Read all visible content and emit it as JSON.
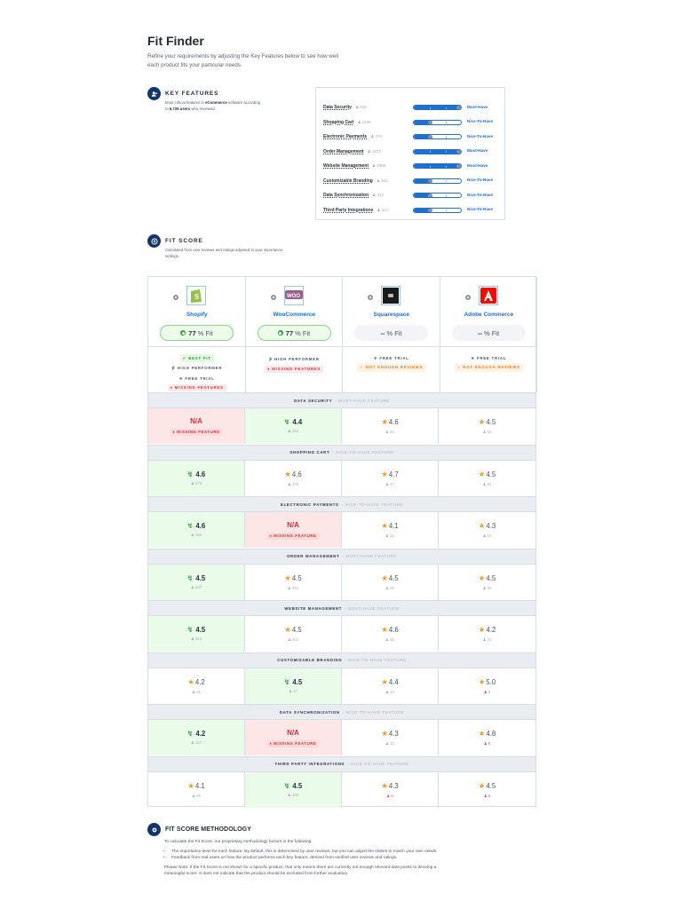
{
  "header": {
    "title": "Fit Finder",
    "subtitle": "Refine your requirements by adjusting the Key Features below to see how well each product fits your particular needs."
  },
  "key_features": {
    "heading": "KEY FEATURES",
    "desc_prefix": "Most critical features in ",
    "desc_category": "eCommerce",
    "desc_mid": " software according to ",
    "desc_users": "6,729 users",
    "desc_suffix": " who reviewed.",
    "items": [
      {
        "name": "Data Security",
        "users": "645",
        "level": "Must-Have",
        "fill": 100
      },
      {
        "name": "Shopping Cart",
        "users": "1539",
        "level": "Nice-To-Have",
        "fill": 33
      },
      {
        "name": "Electronic Payments",
        "users": "270",
        "level": "Nice-To-Have",
        "fill": 33
      },
      {
        "name": "Order Management",
        "users": "1673",
        "level": "Must-Have",
        "fill": 100
      },
      {
        "name": "Website Management",
        "users": "1909",
        "level": "Must-Have",
        "fill": 100
      },
      {
        "name": "Customizable Branding",
        "users": "201",
        "level": "Nice-To-Have",
        "fill": 33
      },
      {
        "name": "Data Synchronization",
        "users": "210",
        "level": "Nice-To-Have",
        "fill": 33
      },
      {
        "name": "Third Party Integrations",
        "users": "314",
        "level": "Nice-To-Have",
        "fill": 33
      }
    ]
  },
  "fit_score": {
    "heading": "FIT SCORE",
    "desc": "Calculated from user reviews and ratings adjusted to your importance settings.",
    "products": [
      {
        "name": "Shopify",
        "fit_value": "77",
        "fit_suffix": "% Fit",
        "badges": [
          {
            "label": "BEST FIT",
            "type": "best",
            "icon": "check-circle-icon"
          },
          {
            "label": "HIGH PERFORMER",
            "type": "plain",
            "icon": "bolt-icon"
          },
          {
            "label": "FREE TRIAL",
            "type": "plain",
            "icon": "gift-icon"
          },
          {
            "label": "MISSING FEATURES",
            "type": "missing",
            "icon": "tag-icon"
          }
        ]
      },
      {
        "name": "WooCommerce",
        "fit_value": "77",
        "fit_suffix": "% Fit",
        "badges": [
          {
            "label": "HIGH PERFORMER",
            "type": "plain",
            "icon": "bolt-icon"
          },
          {
            "label": "MISSING FEATURES",
            "type": "missing",
            "icon": "tag-icon"
          }
        ]
      },
      {
        "name": "Squarespace",
        "fit_value": "--",
        "fit_suffix": "% Fit",
        "badges": [
          {
            "label": "FREE TRIAL",
            "type": "plain",
            "icon": "gift-icon"
          },
          {
            "label": "NOT ENOUGH REVIEWS",
            "type": "notenough",
            "icon": "star-outline-icon"
          }
        ]
      },
      {
        "name": "Adobe Commerce",
        "fit_value": "--",
        "fit_suffix": "% Fit",
        "badges": [
          {
            "label": "FREE TRIAL",
            "type": "plain",
            "icon": "gift-icon"
          },
          {
            "label": "NOT ENOUGH REVIEWS",
            "type": "notenough",
            "icon": "star-outline-icon"
          }
        ]
      }
    ],
    "feature_level_suffix": "FEATURE",
    "features": [
      {
        "name": "DATA SECURITY",
        "level": "MUST-HAVE FEATURE",
        "cells": [
          {
            "type": "na",
            "score": "N/A",
            "note": "MISSING FEATURE"
          },
          {
            "type": "best",
            "score": "4.4",
            "users": "315"
          },
          {
            "type": "star",
            "score": "4.6",
            "users": "64"
          },
          {
            "type": "star",
            "score": "4.5",
            "users": "10"
          }
        ]
      },
      {
        "name": "SHOPPING CART",
        "level": "NICE-TO-HAVE FEATURE",
        "cells": [
          {
            "type": "best",
            "score": "4.6",
            "users": "876"
          },
          {
            "type": "star",
            "score": "4.6",
            "users": "375"
          },
          {
            "type": "star",
            "score": "4.7",
            "users": "47"
          },
          {
            "type": "star",
            "score": "4.5",
            "users": "31"
          }
        ]
      },
      {
        "name": "ELECTRONIC PAYMENTS",
        "level": "NICE-TO-HAVE FEATURE",
        "cells": [
          {
            "type": "best",
            "score": "4.6",
            "users": "260"
          },
          {
            "type": "na",
            "score": "N/A",
            "note": "MISSING FEATURE"
          },
          {
            "type": "star",
            "score": "4.1",
            "users": "22"
          },
          {
            "type": "star",
            "score": "4.3",
            "users": "15"
          }
        ]
      },
      {
        "name": "ORDER MANAGEMENT",
        "level": "MUST-HAVE FEATURE",
        "cells": [
          {
            "type": "best",
            "score": "4.5",
            "users": "847"
          },
          {
            "type": "star",
            "score": "4.5",
            "users": "362"
          },
          {
            "type": "star",
            "score": "4.5",
            "users": "31"
          },
          {
            "type": "star",
            "score": "4.5",
            "users": "32"
          }
        ]
      },
      {
        "name": "WEBSITE MANAGEMENT",
        "level": "MUST-HAVE FEATURE",
        "cells": [
          {
            "type": "best",
            "score": "4.5",
            "users": "914"
          },
          {
            "type": "star",
            "score": "4.5",
            "users": "301"
          },
          {
            "type": "star",
            "score": "4.6",
            "users": "82"
          },
          {
            "type": "star",
            "score": "4.2",
            "users": "31"
          }
        ]
      },
      {
        "name": "CUSTOMIZABLE BRANDING",
        "level": "NICE-TO-HAVE FEATURE",
        "cells": [
          {
            "type": "star",
            "score": "4.2",
            "users": "31"
          },
          {
            "type": "best",
            "score": "4.5",
            "users": "37"
          },
          {
            "type": "star",
            "score": "4.4",
            "users": "10"
          },
          {
            "type": "star",
            "score": "5.0",
            "users": "1",
            "low": true
          }
        ]
      },
      {
        "name": "DATA SYNCHRONIZATION",
        "level": "NICE-TO-HAVE FEATURE",
        "cells": [
          {
            "type": "best",
            "score": "4.2",
            "users": "107"
          },
          {
            "type": "na",
            "score": "N/A",
            "note": "MISSING FEATURE"
          },
          {
            "type": "star",
            "score": "4.3",
            "users": "10"
          },
          {
            "type": "star",
            "score": "4.8",
            "users": "5",
            "low": true
          }
        ]
      },
      {
        "name": "THIRD PARTY INTEGRATIONS",
        "level": "NICE-TO-HAVE FEATURE",
        "cells": [
          {
            "type": "star",
            "score": "4.1",
            "users": "66"
          },
          {
            "type": "best",
            "score": "4.5",
            "users": "203"
          },
          {
            "type": "star",
            "score": "4.3",
            "users": "6",
            "low": true
          },
          {
            "type": "star",
            "score": "4.5",
            "users": "6",
            "low": true
          }
        ]
      }
    ]
  },
  "methodology": {
    "heading": "FIT SCORE METHODOLOGY",
    "intro": "To calculate the Fit Score, our proprietary methodology factors in the following:",
    "bullets": [
      "The importance level for each feature. By default, this is determined by user reviews, but you can adjust the sliders to match your own needs.",
      "Feedback from real users on how the product performs each key feature, derived from verified user reviews and ratings."
    ],
    "note": "Please Note: If the Fit Score is not shown for a specific product, that only means there are currently not enough relevant data points to develop a meaningful score. It does not indicate that the product should be excluded from further evaluation."
  },
  "colors": {
    "accent": "#1f6fd1",
    "navy": "#12366b",
    "good": "#2faa3a",
    "bad": "#d0303a",
    "warn": "#f0801a",
    "star": "#f59a23"
  }
}
